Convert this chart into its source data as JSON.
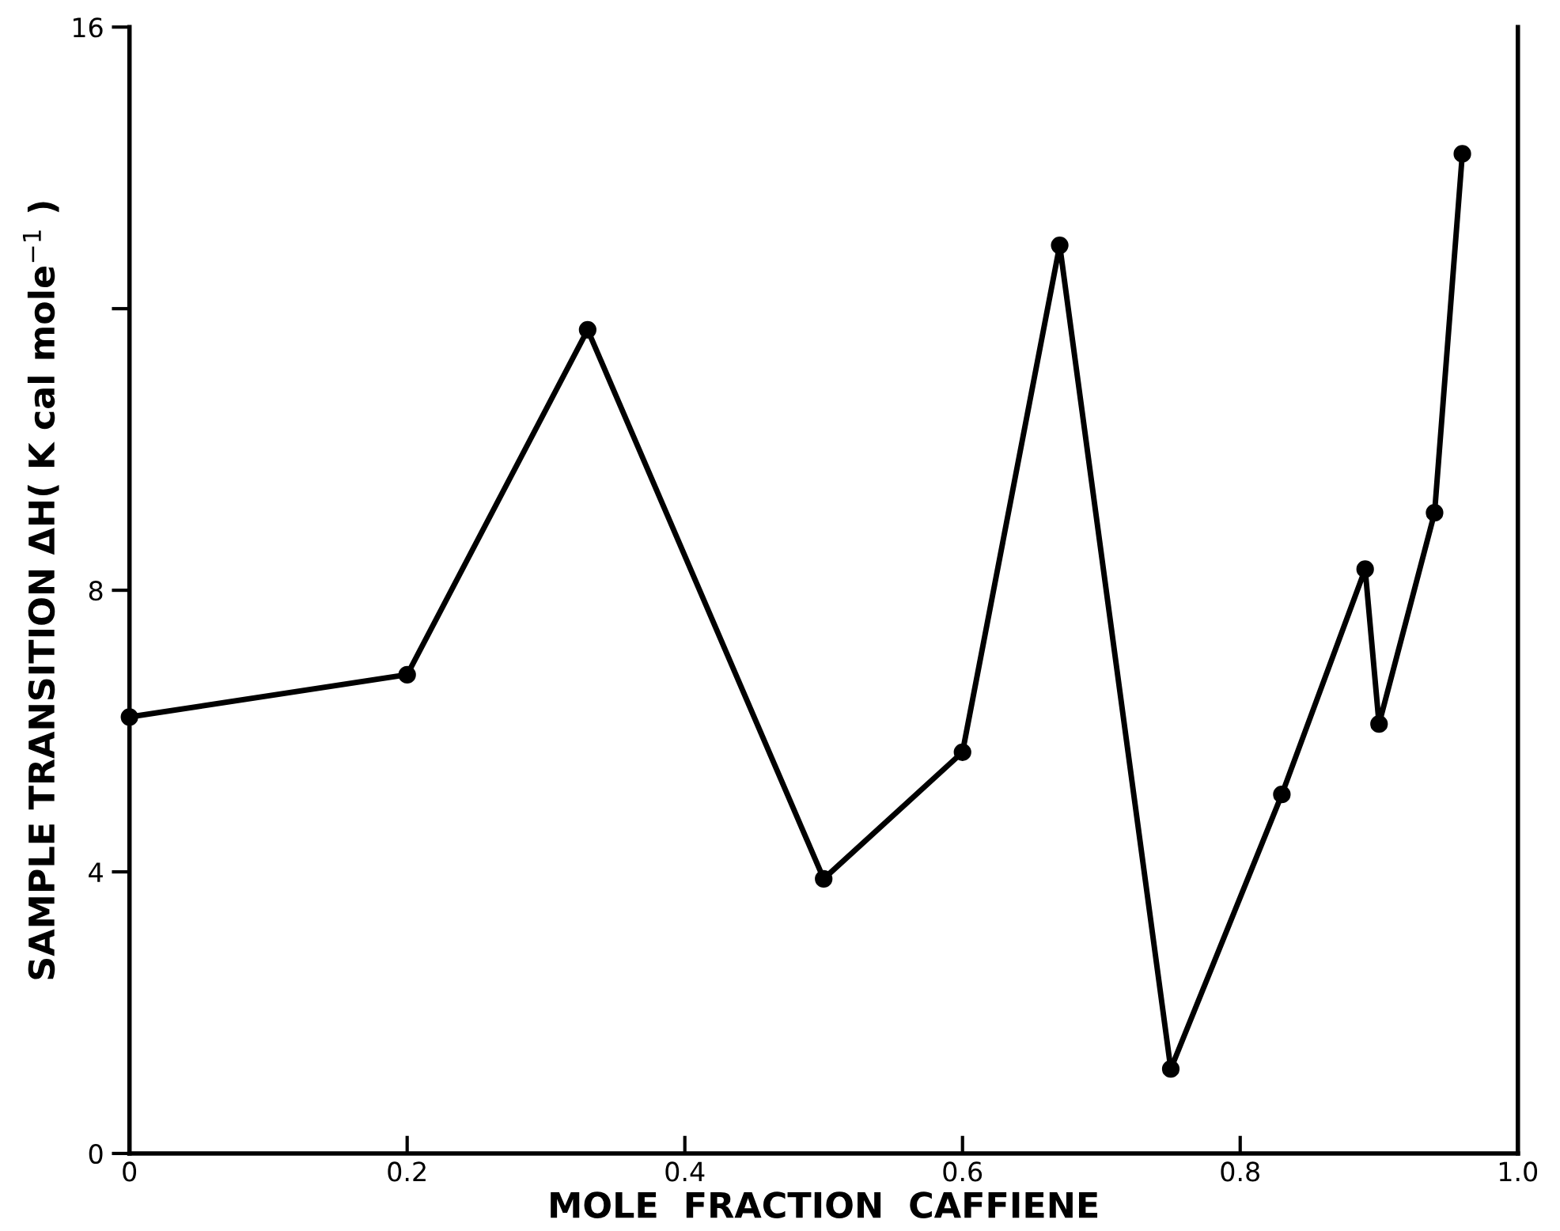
{
  "chart_data": {
    "type": "line",
    "xlabel": "MOLE  FRACTION  CAFFIENE",
    "ylabel": "SAMPLE TRANSITION ΔH( K cal mole$^{−1}$ )",
    "x": [
      0,
      0.2,
      0.33,
      0.5,
      0.6,
      0.67,
      0.75,
      0.83,
      0.89,
      0.9,
      0.94,
      0.96
    ],
    "series": [
      {
        "color": "#000000",
        "values": [
          6.2,
          6.8,
          11.7,
          3.9,
          5.7,
          12.9,
          1.2,
          5.1,
          8.3,
          6.1,
          9.1,
          14.2
        ]
      }
    ],
    "xlim": [
      0,
      1.0
    ],
    "xticks": [
      {
        "value": 0,
        "label": "0"
      },
      0.2,
      0.4,
      0.6,
      0.8,
      {
        "value": 1.0,
        "label": "1.0"
      }
    ],
    "ylim": [
      0,
      16
    ],
    "yticks": [
      0,
      4,
      8,
      {
        "value": 12,
        "label": null
      },
      16
    ],
    "marker": "circle",
    "line_style": "solid",
    "grid": false,
    "legend": false
  }
}
